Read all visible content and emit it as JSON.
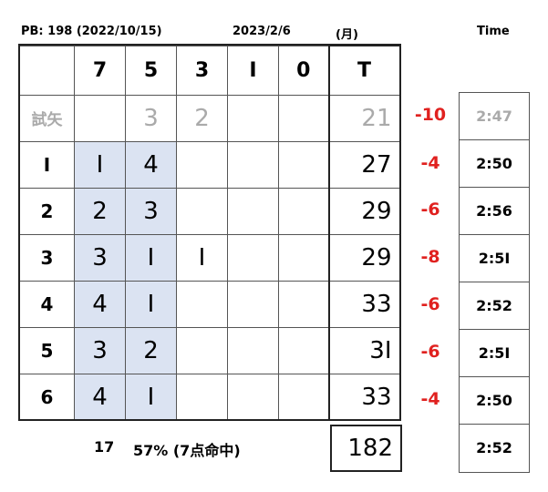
{
  "header": {
    "pb": "PB: 198 (2022/10/15)",
    "date": "2023/2/6",
    "weekday": "(月)",
    "time_label": "Time"
  },
  "columns": [
    "7",
    "5",
    "3",
    "I",
    "0",
    "T"
  ],
  "trial": {
    "label": "試矢",
    "cells": [
      "",
      "3",
      "2",
      "",
      ""
    ],
    "total": "21",
    "diff": "-10",
    "time": "2:47"
  },
  "rows": [
    {
      "label": "I",
      "cells": [
        "I",
        "4",
        "",
        "",
        ""
      ],
      "total": "27",
      "diff": "-4",
      "time": "2:50"
    },
    {
      "label": "2",
      "cells": [
        "2",
        "3",
        "",
        "",
        ""
      ],
      "total": "29",
      "diff": "-6",
      "time": "2:56"
    },
    {
      "label": "3",
      "cells": [
        "3",
        "I",
        "I",
        "",
        ""
      ],
      "total": "29",
      "diff": "-8",
      "time": "2:5I"
    },
    {
      "label": "4",
      "cells": [
        "4",
        "I",
        "",
        "",
        ""
      ],
      "total": "33",
      "diff": "-6",
      "time": "2:52"
    },
    {
      "label": "5",
      "cells": [
        "3",
        "2",
        "",
        "",
        ""
      ],
      "total": "3I",
      "diff": "-6",
      "time": "2:5I"
    },
    {
      "label": "6",
      "cells": [
        "4",
        "I",
        "",
        "",
        ""
      ],
      "total": "33",
      "diff": "-4",
      "time": "2:50"
    }
  ],
  "summary": {
    "count": "17",
    "rate": "57% (7点命中)",
    "grand_total": "182",
    "avg_time": "2:52"
  },
  "colors": {
    "highlight": "#dbe3f2",
    "diff": "#e0211f",
    "trial": "#aaaaaa"
  }
}
